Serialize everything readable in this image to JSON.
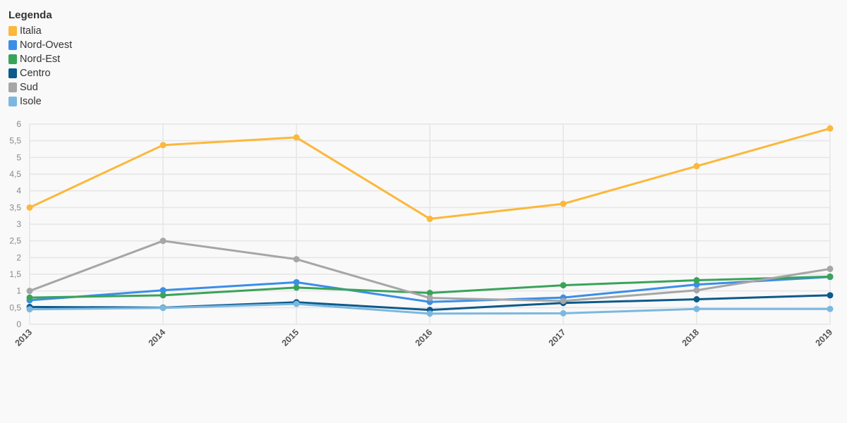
{
  "legend": {
    "title": "Legenda"
  },
  "chart_data": {
    "type": "line",
    "x": [
      "2013",
      "2014",
      "2015",
      "2016",
      "2017",
      "2018",
      "2019"
    ],
    "ylim": [
      0,
      6
    ],
    "yticks": [
      "0",
      "0,5",
      "1",
      "1,5",
      "2",
      "2,5",
      "3",
      "3,5",
      "4",
      "4,5",
      "5",
      "5,5",
      "6"
    ],
    "grid": true,
    "legend_position": "top-left",
    "series": [
      {
        "name": "Italia",
        "color": "#fbb83b",
        "values": [
          3.5,
          5.37,
          5.6,
          3.16,
          3.61,
          4.74,
          5.87
        ]
      },
      {
        "name": "Nord-Ovest",
        "color": "#3b8ee8",
        "values": [
          0.72,
          1.02,
          1.26,
          0.67,
          0.8,
          1.19,
          1.42
        ]
      },
      {
        "name": "Nord-Est",
        "color": "#3aa35a",
        "values": [
          0.8,
          0.87,
          1.1,
          0.94,
          1.17,
          1.32,
          1.43
        ]
      },
      {
        "name": "Centro",
        "color": "#0d5a8c",
        "values": [
          0.52,
          0.5,
          0.66,
          0.43,
          0.64,
          0.75,
          0.87
        ]
      },
      {
        "name": "Sud",
        "color": "#a6a6a6",
        "values": [
          1.0,
          2.5,
          1.95,
          0.79,
          0.7,
          1.02,
          1.66
        ]
      },
      {
        "name": "Isole",
        "color": "#7bb8e0",
        "values": [
          0.45,
          0.49,
          0.61,
          0.32,
          0.33,
          0.46,
          0.46
        ]
      }
    ]
  }
}
